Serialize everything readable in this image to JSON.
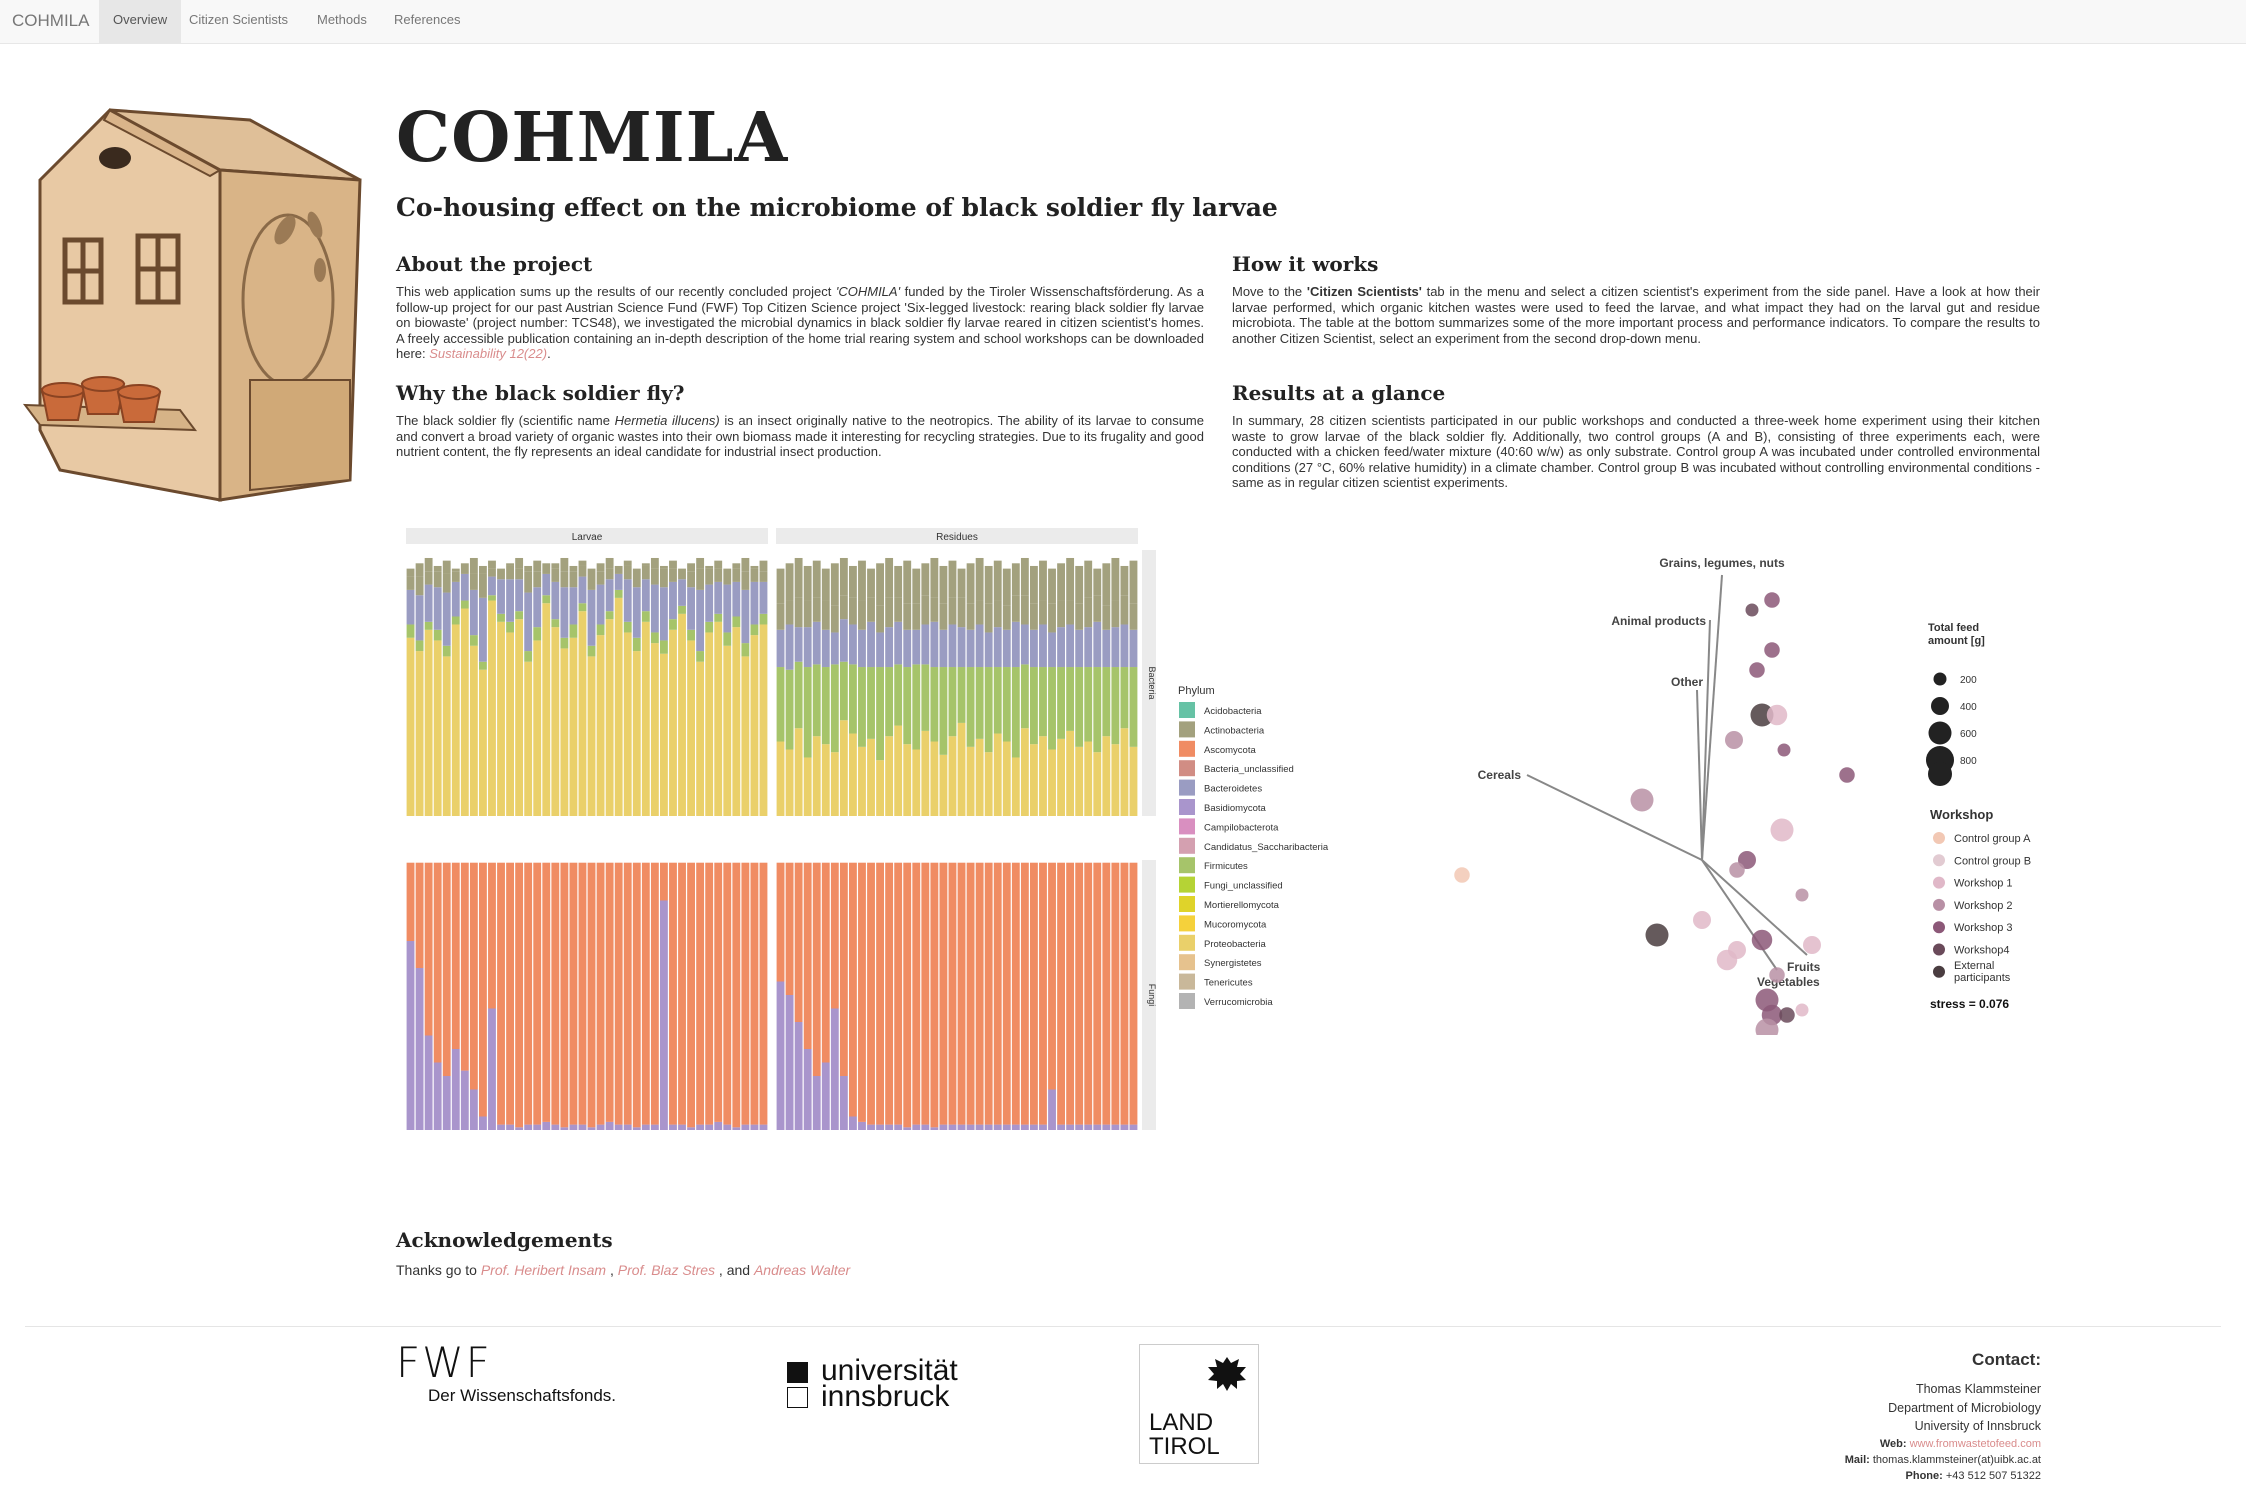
{
  "navbar": {
    "brand": "COHMILA",
    "tabs": [
      "Overview",
      "Citizen Scientists",
      "Methods",
      "References"
    ]
  },
  "header": {
    "title": "COHMILA",
    "subtitle": "Co-housing effect on the microbiome of black soldier fly larvae"
  },
  "about": {
    "heading": "About the project",
    "text_1": "This web application sums up the results of our recently concluded project ",
    "project_name": "'COHMILA'",
    "text_2": " funded by the Tiroler Wissenschaftsförderung. As a follow-up project for our past Austrian Science Fund (FWF) Top Citizen Science project 'Six-legged livestock: rearing black soldier fly larvae on biowaste' (project number: TCS48), we investigated the microbial dynamics in black soldier fly larvae reared in citizen scientist's homes. A freely accessible publication containing an in-depth description of the home trial rearing system and school workshops can be downloaded here: ",
    "link_journal": "Sustainability",
    "link_volume": " 12(22)",
    "end": "."
  },
  "how": {
    "heading": "How it works",
    "text_1": "Move to the ",
    "tab_name": "'Citizen Scientists'",
    "text_2": " tab in the menu and select a citizen scientist's experiment from the side panel. Have a look at how their larvae performed, which organic kitchen wastes were used to feed the larvae, and what impact they had on the larval gut and residue microbiota. The table at the bottom summarizes some of the more important process and performance indicators. To compare the results to another Citizen Scientist, select an experiment from the second drop-down menu."
  },
  "why": {
    "heading": "Why the black soldier fly?",
    "text_1": "The black soldier fly (scientific name ",
    "sci_name": "Hermetia illucens)",
    "text_2": " is an insect originally native to the neotropics. The ability of its larvae to consume and convert a broad variety of organic wastes into their own biomass made it interesting for recycling strategies. Due to its frugality and good nutrient content, the fly represents an ideal candidate for industrial insect production."
  },
  "results": {
    "heading": "Results at a glance",
    "text": "In summary, 28 citizen scientists participated in our public workshops and conducted a three-week home experiment using their kitchen waste to grow larvae of the black soldier fly. Additionally, two control groups (A and B), consisting of three experiments each, were conducted with a chicken feed/water mixture (40:60 w/w) as only substrate. Control group A was incubated under controlled environmental conditions (27 °C, 60% relative humidity) in a climate chamber. Control group B was incubated without controlling environmental conditions - same as in regular citizen scientist experiments."
  },
  "acknowledgements": {
    "heading": "Acknowledgements",
    "prefix": "Thanks go to ",
    "people": [
      "Prof. Heribert Insam",
      "Prof. Blaz Stres",
      "Andreas Walter"
    ],
    "sep1": " , ",
    "sep2": " , and "
  },
  "logos": {
    "fwf_mark": "FWF",
    "fwf_tagline": "Der Wissenschaftsfonds.",
    "uibk_line1": "universität",
    "uibk_line2": "innsbruck",
    "tirol_line1": "LAND",
    "tirol_line2": "TIROL"
  },
  "contact": {
    "title": "Contact:",
    "name": "Thomas Klammsteiner",
    "dept": "Department of Microbiology",
    "uni": "University of Innsbruck",
    "web_label": "Web:",
    "web": "www.fromwastetofeed.com",
    "mail_label": "Mail:",
    "mail": "thomas.klammsteiner(at)uibk.ac.at",
    "phone_label": "Phone:",
    "phone": "+43 512 507 51322"
  },
  "chart_data": [
    {
      "type": "bar",
      "stacked": true,
      "facet_columns": [
        "Larvae",
        "Residues"
      ],
      "facet_rows": [
        "Bacteria",
        "Fungi"
      ],
      "legend_title": "Phylum",
      "legend_position": "right",
      "phyla": [
        {
          "name": "Acidobacteria",
          "color": "#66c2a5"
        },
        {
          "name": "Actinobacteria",
          "color": "#a3a17e"
        },
        {
          "name": "Ascomycota",
          "color": "#f08c63"
        },
        {
          "name": "Bacteria_unclassified",
          "color": "#d18d84"
        },
        {
          "name": "Bacteroidetes",
          "color": "#9a9cc2"
        },
        {
          "name": "Basidiomycota",
          "color": "#a995cc"
        },
        {
          "name": "Campilobacterota",
          "color": "#d98fc0"
        },
        {
          "name": "Candidatus_Saccharibacteria",
          "color": "#d4a0b0"
        },
        {
          "name": "Firmicutes",
          "color": "#a6c46a"
        },
        {
          "name": "Fungi_unclassified",
          "color": "#b5d335"
        },
        {
          "name": "Mortierellomycota",
          "color": "#dfd32a"
        },
        {
          "name": "Mucoromycota",
          "color": "#f5d13b"
        },
        {
          "name": "Proteobacteria",
          "color": "#ead06a"
        },
        {
          "name": "Synergistetes",
          "color": "#e6c28e"
        },
        {
          "name": "Tenericutes",
          "color": "#c9b89a"
        },
        {
          "name": "Verrucomicrobia",
          "color": "#b3b3b3"
        }
      ],
      "samples_per_panel": 40,
      "bacteria_larvae": {
        "proteobacteria": [
          0.67,
          0.62,
          0.7,
          0.66,
          0.6,
          0.72,
          0.78,
          0.64,
          0.55,
          0.81,
          0.73,
          0.69,
          0.74,
          0.58,
          0.66,
          0.8,
          0.71,
          0.63,
          0.67,
          0.77,
          0.6,
          0.68,
          0.74,
          0.82,
          0.69,
          0.62,
          0.73,
          0.65,
          0.61,
          0.7,
          0.76,
          0.66,
          0.58,
          0.69,
          0.73,
          0.64,
          0.71,
          0.6,
          0.68,
          0.72
        ],
        "bacteroidetes": [
          0.13,
          0.17,
          0.14,
          0.16,
          0.2,
          0.13,
          0.1,
          0.17,
          0.24,
          0.07,
          0.13,
          0.16,
          0.12,
          0.22,
          0.15,
          0.08,
          0.14,
          0.19,
          0.14,
          0.1,
          0.21,
          0.15,
          0.12,
          0.06,
          0.16,
          0.19,
          0.12,
          0.18,
          0.2,
          0.14,
          0.1,
          0.16,
          0.23,
          0.14,
          0.12,
          0.18,
          0.13,
          0.2,
          0.16,
          0.12
        ],
        "firmicutes": [
          0.05,
          0.04,
          0.03,
          0.04,
          0.04,
          0.03,
          0.03,
          0.04,
          0.03,
          0.02,
          0.03,
          0.04,
          0.03,
          0.04,
          0.05,
          0.03,
          0.03,
          0.04,
          0.05,
          0.03,
          0.04,
          0.04,
          0.03,
          0.03,
          0.04,
          0.05,
          0.04,
          0.04,
          0.05,
          0.04,
          0.03,
          0.04,
          0.04,
          0.04,
          0.03,
          0.05,
          0.04,
          0.05,
          0.04,
          0.04
        ],
        "actinobacteria": [
          0.05,
          0.07,
          0.05,
          0.06,
          0.07,
          0.04,
          0.04,
          0.06,
          0.09,
          0.03,
          0.04,
          0.05,
          0.04,
          0.08,
          0.06,
          0.04,
          0.05,
          0.06,
          0.06,
          0.04,
          0.08,
          0.05,
          0.04,
          0.03,
          0.05,
          0.07,
          0.05,
          0.06,
          0.07,
          0.05,
          0.04,
          0.06,
          0.08,
          0.06,
          0.05,
          0.06,
          0.05,
          0.07,
          0.05,
          0.04
        ]
      },
      "bacteria_residues": {
        "proteobacteria": [
          0.28,
          0.25,
          0.33,
          0.22,
          0.3,
          0.27,
          0.24,
          0.36,
          0.31,
          0.26,
          0.29,
          0.21,
          0.3,
          0.34,
          0.27,
          0.25,
          0.32,
          0.28,
          0.23,
          0.3,
          0.35,
          0.26,
          0.29,
          0.24,
          0.31,
          0.28,
          0.22,
          0.33,
          0.27,
          0.3,
          0.25,
          0.29,
          0.32,
          0.26,
          0.28,
          0.24,
          0.3,
          0.27,
          0.33,
          0.26
        ],
        "firmicutes": [
          0.28,
          0.3,
          0.25,
          0.34,
          0.27,
          0.29,
          0.33,
          0.22,
          0.26,
          0.3,
          0.27,
          0.35,
          0.26,
          0.23,
          0.29,
          0.32,
          0.25,
          0.28,
          0.33,
          0.26,
          0.21,
          0.3,
          0.27,
          0.32,
          0.25,
          0.28,
          0.34,
          0.24,
          0.29,
          0.26,
          0.31,
          0.27,
          0.24,
          0.3,
          0.28,
          0.32,
          0.26,
          0.29,
          0.23,
          0.3
        ],
        "bacteroidetes": [
          0.14,
          0.17,
          0.13,
          0.15,
          0.16,
          0.14,
          0.12,
          0.16,
          0.15,
          0.14,
          0.17,
          0.13,
          0.15,
          0.16,
          0.14,
          0.13,
          0.15,
          0.17,
          0.14,
          0.16,
          0.15,
          0.14,
          0.16,
          0.13,
          0.15,
          0.14,
          0.17,
          0.15,
          0.14,
          0.16,
          0.13,
          0.15,
          0.16,
          0.14,
          0.15,
          0.17,
          0.14,
          0.15,
          0.16,
          0.14
        ],
        "actinobacteria": [
          0.1,
          0.09,
          0.11,
          0.1,
          0.09,
          0.11,
          0.1,
          0.09,
          0.1,
          0.11,
          0.09,
          0.1,
          0.11,
          0.09,
          0.1,
          0.1,
          0.11,
          0.09,
          0.1,
          0.1,
          0.11,
          0.1,
          0.09,
          0.11,
          0.1,
          0.09,
          0.1,
          0.11,
          0.1,
          0.09,
          0.11,
          0.1,
          0.09,
          0.1,
          0.11,
          0.1,
          0.09,
          0.1,
          0.11,
          0.1
        ]
      },
      "fungi_larvae_basidiomycota": [
        0.7,
        0.6,
        0.35,
        0.25,
        0.2,
        0.3,
        0.22,
        0.15,
        0.05,
        0.45,
        0.02,
        0.02,
        0.01,
        0.02,
        0.02,
        0.03,
        0.02,
        0.01,
        0.02,
        0.02,
        0.01,
        0.02,
        0.03,
        0.02,
        0.02,
        0.01,
        0.02,
        0.02,
        0.85,
        0.02,
        0.02,
        0.01,
        0.02,
        0.02,
        0.03,
        0.02,
        0.01,
        0.02,
        0.02,
        0.02
      ],
      "fungi_residues_basidiomycota": [
        0.55,
        0.5,
        0.4,
        0.3,
        0.2,
        0.25,
        0.45,
        0.2,
        0.05,
        0.03,
        0.02,
        0.02,
        0.02,
        0.02,
        0.01,
        0.02,
        0.02,
        0.01,
        0.02,
        0.02,
        0.02,
        0.02,
        0.02,
        0.02,
        0.02,
        0.02,
        0.02,
        0.02,
        0.02,
        0.02,
        0.15,
        0.02,
        0.02,
        0.02,
        0.02,
        0.02,
        0.02,
        0.02,
        0.02,
        0.02
      ]
    },
    {
      "type": "scatter",
      "subtype": "NMDS with env. vectors",
      "vectors": [
        {
          "label": "Grains, legumes, nuts",
          "x": 0.2,
          "y": 2.85
        },
        {
          "label": "Animal products",
          "x": 0.08,
          "y": 2.4
        },
        {
          "label": "Other",
          "x": -0.05,
          "y": 1.7
        },
        {
          "label": "Cereals",
          "x": -1.75,
          "y": 0.85
        },
        {
          "label": "Fruits",
          "x": 1.05,
          "y": -0.95
        },
        {
          "label": "Vegetables",
          "x": 0.75,
          "y": -1.1
        }
      ],
      "size_legend": {
        "title": "Total feed amount [g]",
        "values": [
          200,
          400,
          600,
          800
        ]
      },
      "color_legend": {
        "title": "Workshop",
        "groups": [
          {
            "name": "Control group A",
            "color": "#f2c8b4"
          },
          {
            "name": "Control group B",
            "color": "#e2cbd2"
          },
          {
            "name": "Workshop 1",
            "color": "#e0b8c8"
          },
          {
            "name": "Workshop 2",
            "color": "#b890a5"
          },
          {
            "name": "Workshop 3",
            "color": "#8c5878"
          },
          {
            "name": "Workshop4",
            "color": "#6a4a5a"
          },
          {
            "name": "External participants",
            "color": "#4a3d40"
          }
        ]
      },
      "stress_label": "stress = 0.076",
      "points": [
        {
          "x": 0.5,
          "y": 2.5,
          "g": 5,
          "s": 200
        },
        {
          "x": 0.7,
          "y": 2.6,
          "g": 4,
          "s": 300
        },
        {
          "x": 0.7,
          "y": 2.1,
          "g": 4,
          "s": 300
        },
        {
          "x": 0.55,
          "y": 1.9,
          "g": 4,
          "s": 300
        },
        {
          "x": 0.32,
          "y": 1.2,
          "g": 3,
          "s": 400
        },
        {
          "x": 0.6,
          "y": 1.45,
          "g": 6,
          "s": 600
        },
        {
          "x": 0.75,
          "y": 1.45,
          "g": 2,
          "s": 500
        },
        {
          "x": 0.82,
          "y": 1.1,
          "g": 4,
          "s": 200
        },
        {
          "x": 1.45,
          "y": 0.85,
          "g": 4,
          "s": 300
        },
        {
          "x": -0.6,
          "y": 0.6,
          "g": 3,
          "s": 600
        },
        {
          "x": 0.8,
          "y": 0.3,
          "g": 2,
          "s": 600
        },
        {
          "x": 0.45,
          "y": 0.0,
          "g": 4,
          "s": 400
        },
        {
          "x": 0.35,
          "y": -0.1,
          "g": 3,
          "s": 300
        },
        {
          "x": 1.0,
          "y": -0.35,
          "g": 3,
          "s": 200
        },
        {
          "x": 0.0,
          "y": -0.6,
          "g": 2,
          "s": 400
        },
        {
          "x": -0.45,
          "y": -0.75,
          "g": 6,
          "s": 600
        },
        {
          "x": 0.6,
          "y": -0.8,
          "g": 4,
          "s": 500
        },
        {
          "x": 0.35,
          "y": -0.9,
          "g": 2,
          "s": 400
        },
        {
          "x": 0.25,
          "y": -1.0,
          "g": 2,
          "s": 500
        },
        {
          "x": 1.1,
          "y": -0.85,
          "g": 2,
          "s": 400
        },
        {
          "x": 0.75,
          "y": -1.15,
          "g": 3,
          "s": 300
        },
        {
          "x": 0.65,
          "y": -1.4,
          "g": 4,
          "s": 600
        },
        {
          "x": 0.7,
          "y": -1.55,
          "g": 4,
          "s": 500
        },
        {
          "x": 0.85,
          "y": -1.55,
          "g": 5,
          "s": 300
        },
        {
          "x": 1.0,
          "y": -1.5,
          "g": 2,
          "s": 200
        },
        {
          "x": 0.65,
          "y": -1.7,
          "g": 3,
          "s": 600
        },
        {
          "x": -2.4,
          "y": -0.15,
          "g": 0,
          "s": 300
        }
      ]
    }
  ]
}
